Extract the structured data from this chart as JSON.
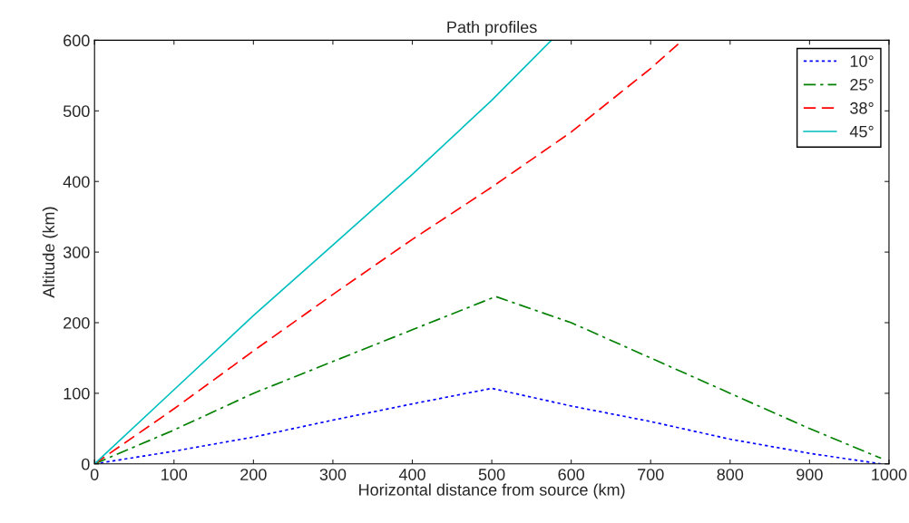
{
  "chart_data": {
    "type": "line",
    "title": "Path profiles",
    "xlabel": "Horizontal distance from source (km)",
    "ylabel": "Altitude (km)",
    "xlim": [
      0,
      1000
    ],
    "xticks": [
      0,
      100,
      200,
      300,
      400,
      500,
      600,
      700,
      800,
      900,
      1000
    ],
    "ylim": [
      0,
      600
    ],
    "yticks": [
      0,
      100,
      200,
      300,
      400,
      500,
      600
    ],
    "legend": "top right",
    "grid": false,
    "series": [
      {
        "name": "10°",
        "color": "#0000ff",
        "line_style": "dotted",
        "x": [
          0,
          100,
          200,
          300,
          400,
          500,
          600,
          700,
          800,
          900,
          990
        ],
        "values": [
          0,
          18,
          38,
          62,
          85,
          107,
          82,
          60,
          35,
          15,
          0
        ]
      },
      {
        "name": "25°",
        "color": "#008000",
        "line_style": "dashdot",
        "x": [
          0,
          100,
          200,
          300,
          400,
          505,
          600,
          700,
          800,
          900,
          990
        ],
        "values": [
          0,
          48,
          100,
          145,
          190,
          237,
          200,
          150,
          100,
          50,
          8
        ]
      },
      {
        "name": "38°",
        "color": "#ff0000",
        "line_style": "dashed",
        "x": [
          0,
          100,
          200,
          300,
          400,
          500,
          600,
          700,
          740
        ],
        "values": [
          0,
          78,
          160,
          240,
          318,
          392,
          470,
          560,
          600
        ]
      },
      {
        "name": "45°",
        "color": "#00bfbf",
        "line_style": "solid",
        "x": [
          0,
          100,
          200,
          300,
          400,
          500,
          575
        ],
        "values": [
          0,
          105,
          210,
          310,
          410,
          515,
          600
        ]
      }
    ]
  }
}
